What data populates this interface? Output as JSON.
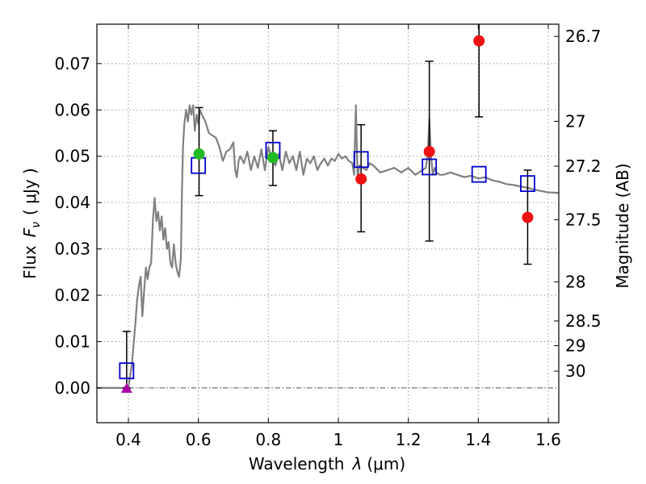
{
  "chart_data": {
    "type": "scatter",
    "xlabel": "Wavelength",
    "xlabel_symbol": "λ",
    "xlabel_unit": "(μm)",
    "ylabel": "Flux",
    "ylabel_symbol": "F",
    "ylabel_subscript": "ν",
    "ylabel_unit": "( μJy )",
    "y2label": "Magnitude (AB)",
    "xlim": [
      0.31,
      1.63
    ],
    "ylim": [
      -0.0075,
      0.0785
    ],
    "grid": true,
    "xticks": [
      {
        "value": 0.4,
        "label": "0.4"
      },
      {
        "value": 0.6,
        "label": "0.6"
      },
      {
        "value": 0.8,
        "label": "0.8"
      },
      {
        "value": 1.0,
        "label": "1"
      },
      {
        "value": 1.2,
        "label": "1.2"
      },
      {
        "value": 1.4,
        "label": "1.4"
      },
      {
        "value": 1.6,
        "label": "1.6"
      }
    ],
    "yticks": [
      {
        "value": 0.0,
        "label": "0.00"
      },
      {
        "value": 0.01,
        "label": "0.01"
      },
      {
        "value": 0.02,
        "label": "0.02"
      },
      {
        "value": 0.03,
        "label": "0.03"
      },
      {
        "value": 0.04,
        "label": "0.04"
      },
      {
        "value": 0.05,
        "label": "0.05"
      },
      {
        "value": 0.06,
        "label": "0.06"
      },
      {
        "value": 0.07,
        "label": "0.07"
      }
    ],
    "mag_ticks": [
      {
        "value": 26.7,
        "label": "26.7"
      },
      {
        "value": 27.0,
        "label": "27"
      },
      {
        "value": 27.2,
        "label": "27.2"
      },
      {
        "value": 27.5,
        "label": "27.5"
      },
      {
        "value": 28.0,
        "label": "28"
      },
      {
        "value": 28.5,
        "label": "28.5"
      },
      {
        "value": 29.0,
        "label": "29"
      },
      {
        "value": 30.0,
        "label": "30"
      }
    ],
    "colors": {
      "sed": "#808080",
      "model": "#0000cc",
      "green": "#22bb22",
      "red": "#ee1111",
      "purple": "#aa00aa",
      "errorbar": "#000000"
    },
    "sed_curve": {
      "name": "model SED",
      "x": [
        0.31,
        0.385,
        0.39,
        0.395,
        0.4,
        0.41,
        0.42,
        0.425,
        0.43,
        0.435,
        0.44,
        0.445,
        0.45,
        0.455,
        0.46,
        0.465,
        0.47,
        0.475,
        0.48,
        0.485,
        0.49,
        0.495,
        0.5,
        0.505,
        0.51,
        0.515,
        0.52,
        0.525,
        0.53,
        0.535,
        0.54,
        0.545,
        0.55,
        0.553,
        0.556,
        0.56,
        0.565,
        0.57,
        0.575,
        0.58,
        0.585,
        0.59,
        0.595,
        0.6,
        0.605,
        0.61,
        0.62,
        0.63,
        0.64,
        0.65,
        0.66,
        0.67,
        0.68,
        0.69,
        0.7,
        0.705,
        0.71,
        0.715,
        0.72,
        0.73,
        0.74,
        0.75,
        0.76,
        0.77,
        0.78,
        0.79,
        0.8,
        0.81,
        0.82,
        0.83,
        0.84,
        0.85,
        0.86,
        0.87,
        0.88,
        0.89,
        0.9,
        0.91,
        0.92,
        0.93,
        0.94,
        0.95,
        0.96,
        0.97,
        0.98,
        0.99,
        1.0,
        1.01,
        1.02,
        1.03,
        1.04,
        1.045,
        1.05,
        1.055,
        1.06,
        1.07,
        1.08,
        1.09,
        1.1,
        1.12,
        1.14,
        1.16,
        1.18,
        1.2,
        1.22,
        1.24,
        1.25,
        1.255,
        1.26,
        1.265,
        1.27,
        1.275,
        1.28,
        1.29,
        1.3,
        1.32,
        1.34,
        1.36,
        1.38,
        1.4,
        1.42,
        1.44,
        1.46,
        1.48,
        1.5,
        1.52,
        1.54,
        1.56,
        1.58,
        1.6,
        1.63
      ],
      "y": [
        0.0,
        0.0,
        0.0001,
        0.0002,
        0.0,
        0.005,
        0.014,
        0.019,
        0.022,
        0.024,
        0.0155,
        0.021,
        0.026,
        0.0235,
        0.026,
        0.027,
        0.036,
        0.041,
        0.036,
        0.038,
        0.034,
        0.037,
        0.032,
        0.0345,
        0.03,
        0.0315,
        0.027,
        0.026,
        0.031,
        0.027,
        0.025,
        0.024,
        0.028,
        0.042,
        0.052,
        0.057,
        0.06,
        0.0575,
        0.061,
        0.059,
        0.061,
        0.0555,
        0.059,
        0.057,
        0.06,
        0.059,
        0.0575,
        0.055,
        0.0545,
        0.054,
        0.052,
        0.049,
        0.051,
        0.0515,
        0.053,
        0.047,
        0.0455,
        0.049,
        0.05,
        0.0485,
        0.051,
        0.047,
        0.05,
        0.0475,
        0.0515,
        0.047,
        0.052,
        0.0495,
        0.048,
        0.0505,
        0.047,
        0.051,
        0.0485,
        0.05,
        0.047,
        0.051,
        0.046,
        0.0495,
        0.0485,
        0.05,
        0.047,
        0.0485,
        0.0495,
        0.048,
        0.0495,
        0.049,
        0.0505,
        0.0495,
        0.05,
        0.049,
        0.0485,
        0.046,
        0.061,
        0.0455,
        0.048,
        0.0475,
        0.047,
        0.0485,
        0.048,
        0.0465,
        0.047,
        0.0475,
        0.0465,
        0.0475,
        0.046,
        0.047,
        0.0475,
        0.05,
        0.058,
        0.05,
        0.046,
        0.0475,
        0.0465,
        0.046,
        0.046,
        0.0465,
        0.046,
        0.0455,
        0.0458,
        0.0452,
        0.0455,
        0.0448,
        0.0445,
        0.044,
        0.0438,
        0.0435,
        0.0432,
        0.0428,
        0.0425,
        0.0422,
        0.0421
      ]
    },
    "series": [
      {
        "name": "model photometry",
        "marker": "open-square",
        "points": [
          {
            "x": 0.395,
            "y": 0.0037
          },
          {
            "x": 0.6,
            "y": 0.048
          },
          {
            "x": 0.813,
            "y": 0.0513
          },
          {
            "x": 1.065,
            "y": 0.0493
          },
          {
            "x": 1.26,
            "y": 0.0477
          },
          {
            "x": 1.402,
            "y": 0.0461
          },
          {
            "x": 1.541,
            "y": 0.0441
          }
        ]
      },
      {
        "name": "green detections",
        "marker": "filled-circle",
        "points": [
          {
            "x": 0.602,
            "y": 0.0505,
            "err_low": 0.0415,
            "err_high": 0.0605
          },
          {
            "x": 0.813,
            "y": 0.0497,
            "err_low": 0.0437,
            "err_high": 0.0555
          }
        ]
      },
      {
        "name": "red detections",
        "marker": "filled-circle",
        "points": [
          {
            "x": 1.065,
            "y": 0.0451,
            "err_low": 0.0337,
            "err_high": 0.0568
          },
          {
            "x": 1.26,
            "y": 0.051,
            "err_low": 0.0317,
            "err_high": 0.0705
          },
          {
            "x": 1.402,
            "y": 0.0749,
            "err_low": 0.0585,
            "err_high": 0.0785
          },
          {
            "x": 1.541,
            "y": 0.0368,
            "err_low": 0.0267,
            "err_high": 0.047
          }
        ]
      },
      {
        "name": "upper limit",
        "marker": "triangle",
        "points": [
          {
            "x": 0.395,
            "y": 0.0,
            "err_low": 0.0,
            "err_high": 0.0122
          }
        ]
      }
    ]
  }
}
